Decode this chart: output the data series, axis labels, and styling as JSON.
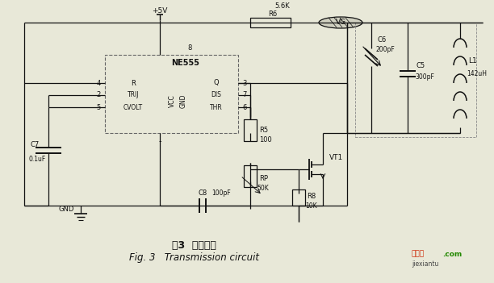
{
  "title_cn": "图3  发射电路",
  "title_en": "Fig. 3   Transmission circuit",
  "watermark1": "接线图",
  "watermark2": ".com",
  "watermark_color1": "#cc2200",
  "watermark_color2": "#228800",
  "bg_color": "#e8e8d8",
  "line_color": "#111111",
  "figsize": [
    6.12,
    3.51
  ],
  "dpi": 100
}
